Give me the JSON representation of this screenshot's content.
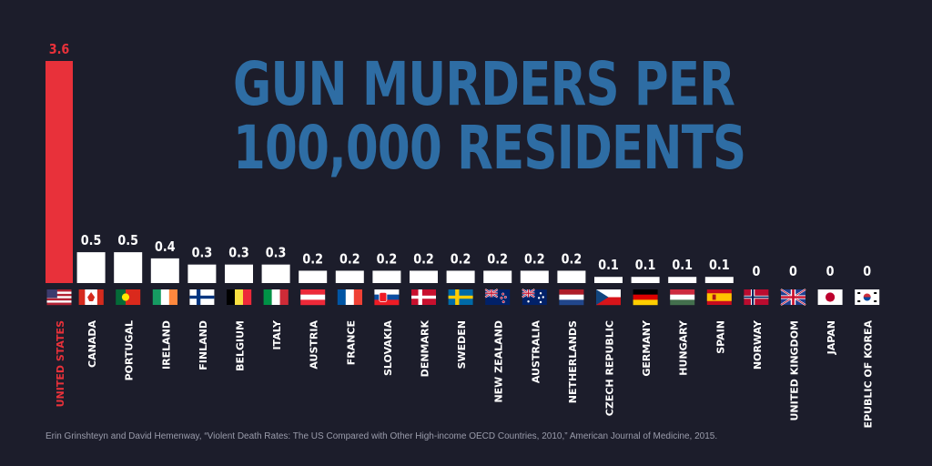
{
  "title": {
    "line1": "GUN MURDERS PER",
    "line2": "100,000 RESIDENTS"
  },
  "source": "Erin Grinshteyn and David Hemenway, “Violent Death Rates: The US Compared with Other High-income OECD Countries, 2010,” American Journal of Medicine, 2015.",
  "colors": {
    "background": "#1c1d2b",
    "title": "#2e6da4",
    "highlight": "#e8313a",
    "bar": "#ffffff",
    "value_text": "#ffffff",
    "label_text": "#ffffff",
    "source_text": "#9a9cab"
  },
  "chart_data": {
    "type": "bar",
    "highlight_category": "UNITED STATES",
    "categories": [
      "UNITED STATES",
      "CANADA",
      "PORTUGAL",
      "IRELAND",
      "FINLAND",
      "BELGIUM",
      "ITALY",
      "AUSTRIA",
      "FRANCE",
      "SLOVAKIA",
      "DENMARK",
      "SWEDEN",
      "NEW ZEALAND",
      "AUSTRALIA",
      "NETHERLANDS",
      "CZECH REPUBLIC",
      "GERMANY",
      "HUNGARY",
      "SPAIN",
      "NORWAY",
      "UNITED KINGDOM",
      "JAPAN",
      "REPUBLIC OF KOREA"
    ],
    "values": [
      3.6,
      0.5,
      0.5,
      0.4,
      0.3,
      0.3,
      0.3,
      0.2,
      0.2,
      0.2,
      0.2,
      0.2,
      0.2,
      0.2,
      0.2,
      0.1,
      0.1,
      0.1,
      0.1,
      0,
      0,
      0,
      0
    ],
    "value_labels": [
      "3.6",
      "0.5",
      "0.5",
      "0.4",
      "0.3",
      "0.3",
      "0.3",
      "0.2",
      "0.2",
      "0.2",
      "0.2",
      "0.2",
      "0.2",
      "0.2",
      "0.2",
      "0.1",
      "0.1",
      "0.1",
      "0.1",
      "0",
      "0",
      "0",
      "0"
    ],
    "flag_icons": [
      "flag-us-icon",
      "flag-ca-icon",
      "flag-pt-icon",
      "flag-ie-icon",
      "flag-fi-icon",
      "flag-be-icon",
      "flag-it-icon",
      "flag-at-icon",
      "flag-fr-icon",
      "flag-sk-icon",
      "flag-dk-icon",
      "flag-se-icon",
      "flag-nz-icon",
      "flag-au-icon",
      "flag-nl-icon",
      "flag-cz-icon",
      "flag-de-icon",
      "flag-hu-icon",
      "flag-es-icon",
      "flag-no-icon",
      "flag-gb-icon",
      "flag-jp-icon",
      "flag-kr-icon"
    ],
    "ylim": [
      0,
      3.6
    ],
    "grid": false,
    "xlabel": "",
    "ylabel": ""
  }
}
